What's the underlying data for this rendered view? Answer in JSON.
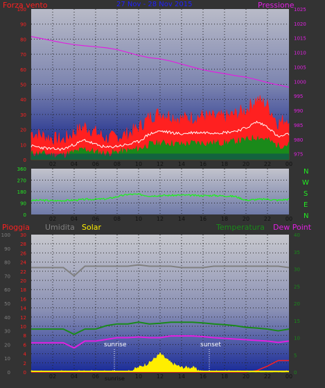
{
  "colors": {
    "background": "#333333",
    "wind": "#ff2020",
    "gust": "#ff2020",
    "wind_mid": "#1a8a1a",
    "wind_white": "#ffffff",
    "pressure": "#e020e0",
    "direction": "#22ee22",
    "rain": "#ff2020",
    "humidity": "#808080",
    "solar": "#ffee00",
    "temperature": "#1a8a1a",
    "dewpoint": "#e020e0",
    "title": "#2020ff"
  },
  "legend": {
    "wind": "Forza vento",
    "title": "27 Nov  -  28 Nov 2015",
    "pressure": "Pressione",
    "rain": "Pioggia",
    "humidity": "Umidita",
    "solar": "Solar",
    "temperature": "Temperatura",
    "dewpoint": "Dew Point",
    "compass": [
      "N",
      "W",
      "S",
      "E",
      "N"
    ],
    "sunrise": "sunrise",
    "sunset": "sunset",
    "x_sunrise_label": "sunrise"
  },
  "x_ticks": [
    "02",
    "04",
    "06",
    "08",
    "10",
    "12",
    "14",
    "16",
    "18",
    "20",
    "22",
    "00"
  ],
  "chart_data": [
    {
      "type": "line",
      "title": "27 Nov  -  28 Nov 2015",
      "x": [
        0,
        1,
        2,
        3,
        4,
        5,
        6,
        7,
        8,
        9,
        10,
        11,
        12,
        13,
        14,
        15,
        16,
        17,
        18,
        19,
        20,
        21,
        22,
        23,
        24
      ],
      "series": [
        {
          "name": "Forza vento",
          "axis": "left",
          "values": [
            18,
            16,
            14,
            13,
            18,
            22,
            18,
            14,
            15,
            17,
            21,
            28,
            31,
            29,
            27,
            28,
            29,
            28,
            28,
            30,
            33,
            40,
            36,
            24,
            28
          ]
        },
        {
          "name": "",
          "axis": "left",
          "values": [
            9,
            8,
            7,
            7,
            10,
            13,
            10,
            8,
            9,
            10,
            12,
            17,
            19,
            18,
            17,
            18,
            18,
            18,
            18,
            19,
            21,
            25,
            22,
            15,
            17
          ]
        },
        {
          "name": "",
          "axis": "left",
          "values": [
            4,
            4,
            3,
            3,
            5,
            7,
            5,
            4,
            5,
            6,
            7,
            10,
            11,
            11,
            10,
            11,
            11,
            11,
            11,
            12,
            13,
            15,
            13,
            9,
            10
          ]
        },
        {
          "name": "Pressione",
          "axis": "right",
          "values": [
            1015.5,
            1014.8,
            1014,
            1013.3,
            1012.7,
            1012.3,
            1012,
            1011.6,
            1011,
            1010,
            1009,
            1008.2,
            1007.8,
            1007,
            1006,
            1005,
            1004,
            1003.3,
            1002.7,
            1002,
            1001.5,
            1000.6,
            999.6,
            998.8,
            998
          ]
        }
      ],
      "left_axis": {
        "ylim": [
          0,
          100
        ],
        "ticks": [
          0,
          10,
          20,
          30,
          40,
          50,
          60,
          70,
          80,
          90,
          100
        ]
      },
      "right_axis": {
        "ylim": [
          973,
          1025
        ],
        "ticks": [
          975,
          980,
          985,
          990,
          995,
          1000,
          1005,
          1010,
          1015,
          1020,
          1025
        ]
      }
    },
    {
      "type": "line",
      "x": [
        0,
        1,
        2,
        3,
        4,
        5,
        6,
        7,
        8,
        9,
        10,
        11,
        12,
        13,
        14,
        15,
        16,
        17,
        18,
        19,
        20,
        21,
        22,
        23,
        24
      ],
      "series": [
        {
          "name": "",
          "values": [
            110,
            112,
            108,
            110,
            112,
            118,
            120,
            122,
            140,
            158,
            158,
            146,
            150,
            150,
            152,
            150,
            148,
            150,
            146,
            142,
            112,
            118,
            120,
            112,
            120
          ]
        }
      ],
      "ylim": [
        0,
        360
      ],
      "ticks": [
        0,
        90,
        180,
        270,
        360
      ]
    },
    {
      "type": "line",
      "x": [
        0,
        1,
        2,
        3,
        4,
        5,
        6,
        7,
        8,
        9,
        10,
        11,
        12,
        13,
        14,
        15,
        16,
        17,
        18,
        19,
        20,
        21,
        22,
        23,
        24
      ],
      "series": [
        {
          "name": "Umidita",
          "axis": "left_humidity",
          "values": [
            76,
            76,
            76,
            76,
            70,
            77,
            77,
            77,
            77,
            77,
            78,
            77,
            77,
            77,
            76,
            76,
            76,
            77,
            77,
            77,
            77,
            77,
            77,
            77,
            76
          ]
        },
        {
          "name": "Temperatura",
          "axis": "right",
          "values": [
            12.5,
            12.5,
            12.5,
            12.5,
            11,
            12.5,
            12.5,
            13.5,
            14,
            14,
            14.5,
            14,
            14.2,
            14.5,
            14.5,
            14.5,
            14.3,
            14,
            13.8,
            13.5,
            13,
            12.8,
            12.5,
            12,
            12.5
          ]
        },
        {
          "name": "Dew Point",
          "axis": "right",
          "values": [
            8.5,
            8.5,
            8.5,
            8.5,
            7,
            9,
            9,
            9.5,
            10,
            10,
            10.2,
            10,
            10,
            10.5,
            10.5,
            10.5,
            10.3,
            10,
            9.8,
            9.6,
            9.4,
            9.2,
            9,
            8.6,
            9
          ]
        },
        {
          "name": "Solar",
          "axis": "left_solar",
          "values": [
            0,
            0,
            0,
            0,
            0,
            0,
            0,
            0,
            0,
            0,
            1,
            2,
            4,
            2,
            1,
            1,
            0,
            0,
            0,
            0,
            0,
            0,
            0,
            0,
            0
          ]
        },
        {
          "name": "Pioggia",
          "axis": "left_rain",
          "values": [
            0,
            0,
            0,
            0,
            0,
            0,
            0,
            0,
            0,
            0,
            0,
            0,
            0,
            0,
            0,
            0,
            0,
            0,
            0,
            0,
            0,
            0.3,
            1.3,
            2.5,
            2.5
          ]
        }
      ],
      "left_axis_humidity": {
        "ylim": [
          0,
          100
        ],
        "ticks": [
          0,
          10,
          20,
          30,
          40,
          50,
          60,
          70,
          80,
          90,
          100
        ]
      },
      "left_axis_rain": {
        "ylim": [
          0,
          30
        ],
        "ticks": [
          0,
          2,
          4,
          6,
          8,
          10,
          12,
          14,
          16,
          18,
          20,
          22,
          24,
          26,
          28,
          30
        ]
      },
      "right_axis": {
        "ylim": [
          0,
          40
        ],
        "ticks": [
          0,
          5,
          10,
          15,
          20,
          25,
          30,
          35,
          40
        ]
      },
      "annotations": [
        "sunrise",
        "sunset"
      ]
    }
  ]
}
